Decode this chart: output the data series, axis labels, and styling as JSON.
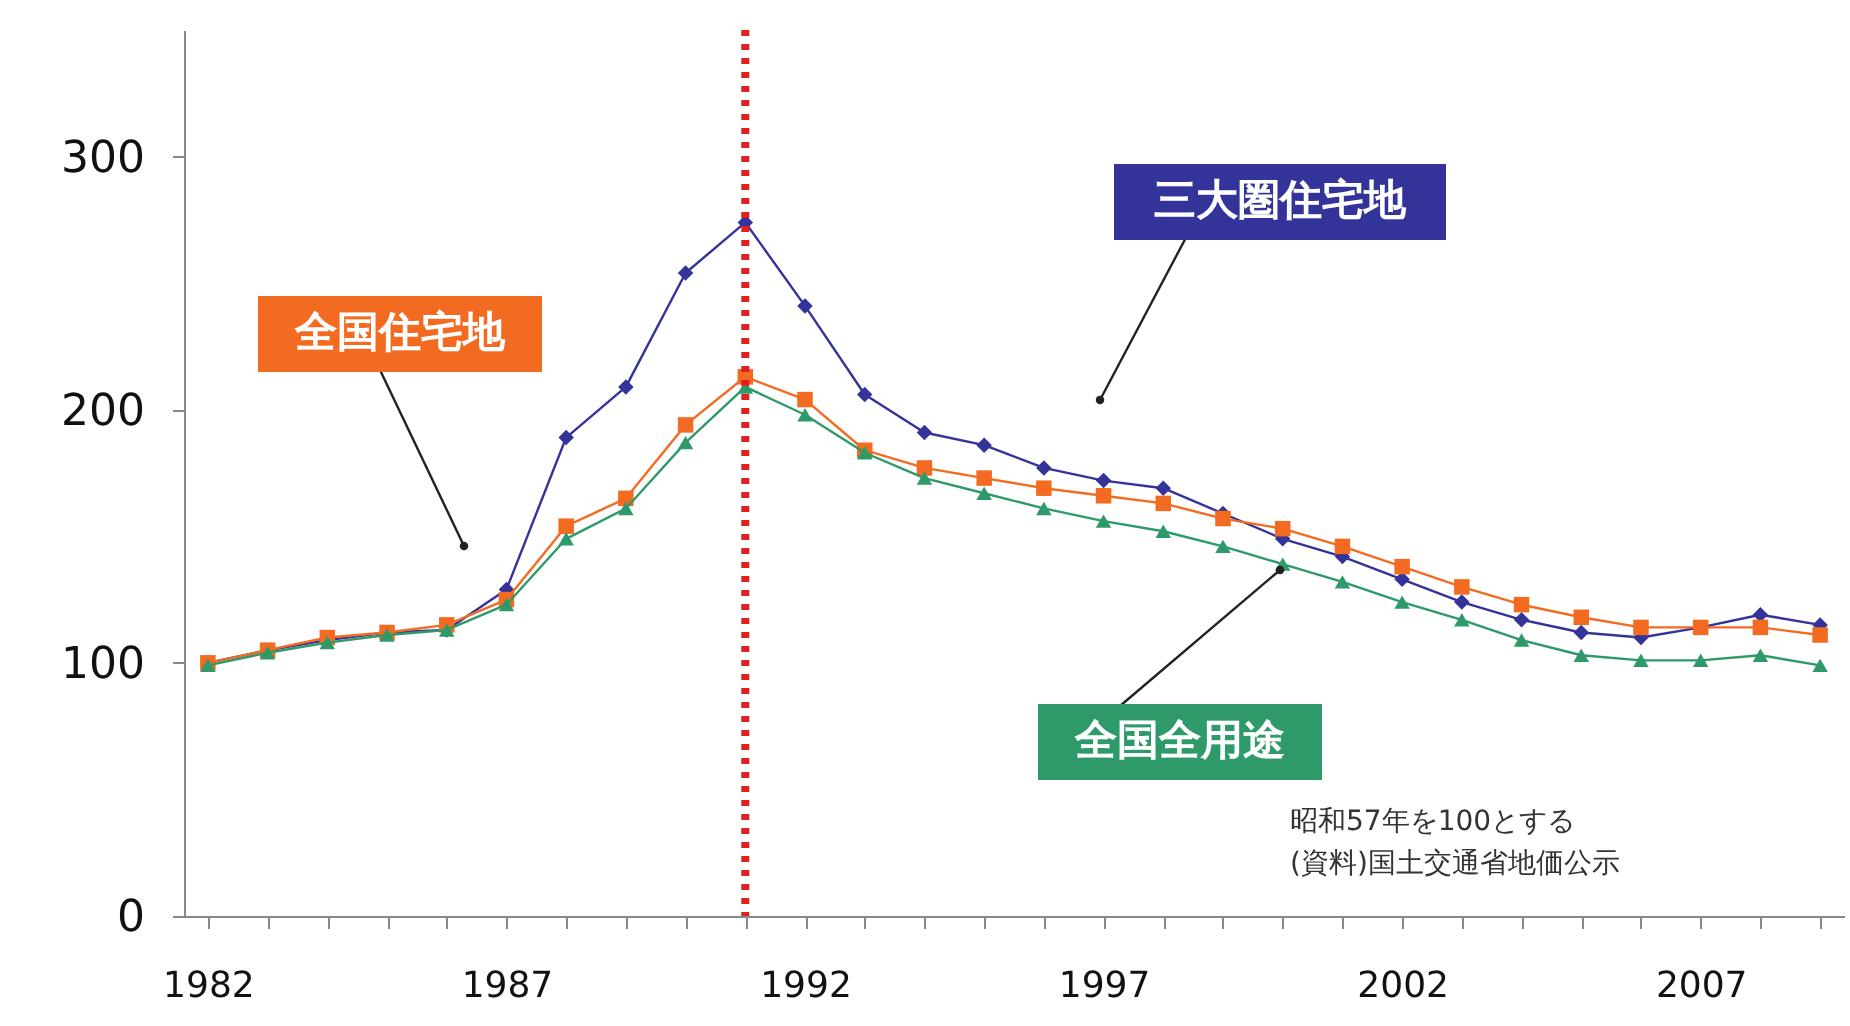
{
  "chart_data": {
    "type": "line",
    "x": [
      1982,
      1983,
      1984,
      1985,
      1986,
      1987,
      1988,
      1989,
      1990,
      1991,
      1992,
      1993,
      1994,
      1995,
      1996,
      1997,
      1998,
      1999,
      2000,
      2001,
      2002,
      2003,
      2004,
      2005,
      2006,
      2007,
      2008,
      2009
    ],
    "series": [
      {
        "name": "三大圏住宅地",
        "color": "#33339a",
        "marker": "diamond",
        "values": [
          100,
          105,
          109,
          112,
          113,
          129,
          189,
          209,
          254,
          274,
          241,
          206,
          191,
          186,
          177,
          172,
          169,
          159,
          149,
          142,
          133,
          124,
          117,
          112,
          110,
          114,
          119,
          115
        ]
      },
      {
        "name": "全国住宅地",
        "color": "#f26b21",
        "marker": "square",
        "values": [
          100,
          105,
          110,
          112,
          115,
          125,
          154,
          165,
          194,
          213,
          204,
          184,
          177,
          173,
          169,
          166,
          163,
          157,
          153,
          146,
          138,
          130,
          123,
          118,
          114,
          114,
          114,
          111
        ]
      },
      {
        "name": "全国全用途",
        "color": "#2e9a6a",
        "marker": "triangle",
        "values": [
          99,
          104,
          108,
          111,
          113,
          123,
          149,
          161,
          187,
          209,
          198,
          183,
          173,
          167,
          161,
          156,
          152,
          146,
          139,
          132,
          124,
          117,
          109,
          103,
          101,
          101,
          103,
          99
        ]
      }
    ],
    "xlim": [
      1981.6,
      2009.4
    ],
    "xticks": [
      1982,
      {
        "value": 1983,
        "label": null
      },
      {
        "value": 1984,
        "label": null
      },
      {
        "value": 1985,
        "label": null
      },
      {
        "value": 1986,
        "label": null
      },
      1987,
      {
        "value": 1988,
        "label": null
      },
      {
        "value": 1989,
        "label": null
      },
      {
        "value": 1990,
        "label": null
      },
      {
        "value": 1991,
        "label": null
      },
      1992,
      {
        "value": 1993,
        "label": null
      },
      {
        "value": 1994,
        "label": null
      },
      {
        "value": 1995,
        "label": null
      },
      {
        "value": 1996,
        "label": null
      },
      1997,
      {
        "value": 1998,
        "label": null
      },
      {
        "value": 1999,
        "label": null
      },
      {
        "value": 2000,
        "label": null
      },
      {
        "value": 2001,
        "label": null
      },
      2002,
      {
        "value": 2003,
        "label": null
      },
      {
        "value": 2004,
        "label": null
      },
      {
        "value": 2005,
        "label": null
      },
      {
        "value": 2006,
        "label": null
      },
      2007,
      {
        "value": 2008,
        "label": null
      },
      {
        "value": 2009,
        "label": null
      }
    ],
    "ylim": [
      0,
      350
    ],
    "yticks": [
      0,
      100,
      200,
      300
    ],
    "grid": false,
    "ref_lines": [
      {
        "axis": "x",
        "value": 1991,
        "color": "#e21e1e",
        "line_style": "dotted"
      }
    ],
    "annotations": [
      "昭和57年を100とする",
      "(資料)国土交通省地価公示"
    ]
  }
}
